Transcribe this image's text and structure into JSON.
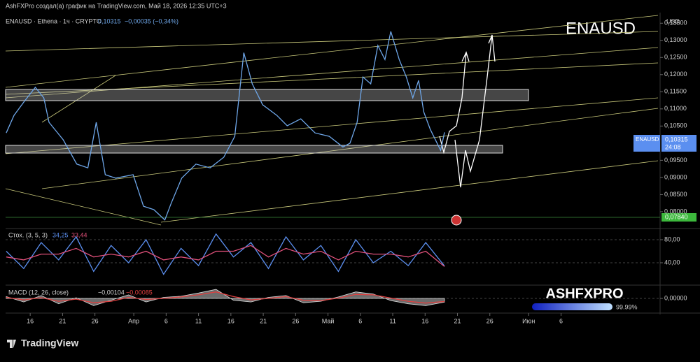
{
  "header": {
    "attribution": "AshFXPro создал(а) график на TradingView.com, Май 18, 2026 12:35 UTC+3",
    "symbol_line": "ENAUSD · Ethena · 1ч · CRYPTO",
    "price": "0,10315",
    "change": "−0,00035 (−0,34%)",
    "watermark": "ENAUSD",
    "currency": "USD",
    "brand": "ASHFXPRO",
    "brand_pct": "99.99%",
    "footer": "TradingView"
  },
  "chart_data": [
    {
      "type": "line",
      "xlim": [
        -3.8,
        97.3
      ],
      "ylim": [
        0.0755,
        0.1377
      ],
      "x": [
        -3.7,
        -2.5,
        -0.9,
        0.8,
        2.1,
        2.9,
        5.1,
        7.2,
        8.9,
        10.2,
        11.6,
        13.2,
        15.9,
        17.5,
        19.1,
        20.8,
        21.8,
        23.4,
        25.6,
        27.8,
        29.9,
        31.6,
        33.0,
        34.3,
        35.9,
        38.1,
        39.7,
        41.8,
        44.0,
        46.2,
        48.3,
        49.4,
        50.5,
        51.4,
        52.6,
        53.7,
        54.8,
        55.7,
        57.0,
        58.1,
        59.1,
        60.0,
        60.8,
        61.8,
        63.4,
        64.0
      ],
      "series": [
        {
          "color": "#6ea6e8",
          "values": [
            0.103,
            0.1081,
            0.1122,
            0.1163,
            0.1132,
            0.1061,
            0.101,
            0.0939,
            0.0928,
            0.1061,
            0.0908,
            0.0898,
            0.0908,
            0.0816,
            0.0806,
            0.0776,
            0.0826,
            0.0898,
            0.0939,
            0.0928,
            0.0959,
            0.102,
            0.1264,
            0.1173,
            0.1112,
            0.1081,
            0.1051,
            0.1071,
            0.103,
            0.102,
            0.0989,
            0.1,
            0.1061,
            0.1193,
            0.1173,
            0.1285,
            0.1244,
            0.1326,
            0.1244,
            0.1193,
            0.1132,
            0.1183,
            0.1091,
            0.104,
            0.0979,
            0.10315
          ]
        }
      ],
      "xticks": [
        {
          "value": 0,
          "label": "16"
        },
        {
          "value": 5,
          "label": "21"
        },
        {
          "value": 10,
          "label": "26"
        },
        {
          "value": 16,
          "label": "Апр"
        },
        {
          "value": 21,
          "label": "6"
        },
        {
          "value": 26,
          "label": "11"
        },
        {
          "value": 31,
          "label": "16"
        },
        {
          "value": 36,
          "label": "21"
        },
        {
          "value": 41,
          "label": "26"
        },
        {
          "value": 46,
          "label": "Май"
        },
        {
          "value": 51,
          "label": "6"
        },
        {
          "value": 56,
          "label": "11"
        },
        {
          "value": 61,
          "label": "16"
        },
        {
          "value": 66,
          "label": "21"
        },
        {
          "value": 71,
          "label": "26"
        },
        {
          "value": 77,
          "label": "Июн"
        },
        {
          "value": 82,
          "label": "6"
        }
      ],
      "yticks": [
        {
          "value": 0.135,
          "label": "0,13500"
        },
        {
          "value": 0.13,
          "label": "0,13000"
        },
        {
          "value": 0.125,
          "label": "0,12500"
        },
        {
          "value": 0.12,
          "label": "0,12000"
        },
        {
          "value": 0.115,
          "label": "0,11500"
        },
        {
          "value": 0.11,
          "label": "0,11000"
        },
        {
          "value": 0.105,
          "label": "0,10500"
        },
        {
          "value": 0.095,
          "label": "0,09500"
        },
        {
          "value": 0.09,
          "label": "0,09000"
        },
        {
          "value": 0.085,
          "label": "0,08500"
        },
        {
          "value": 0.08,
          "label": "0,08000"
        }
      ],
      "price_tag": {
        "label": "ENAUSD",
        "value": "0,10315",
        "timer": "24:08"
      },
      "level_tag": "0,07840"
    },
    {
      "type": "line",
      "title": "Стох. (3, 5, 3)",
      "xlim": [
        -3.8,
        97.3
      ],
      "ylim": [
        2.4,
        98.2
      ],
      "x": [
        -3.7,
        -1,
        1.7,
        4.4,
        7.1,
        9.8,
        12.5,
        15.2,
        17.9,
        20.6,
        23.3,
        26,
        28.7,
        31.4,
        34.1,
        36.8,
        39.5,
        42.2,
        44.9,
        47.6,
        50.3,
        53,
        55.7,
        58.4,
        61.1,
        64
      ],
      "series": [
        {
          "color": "#5b8ff0",
          "last_label": "34,25",
          "values": [
            60,
            30,
            75,
            45,
            85,
            25,
            70,
            40,
            80,
            20,
            65,
            35,
            90,
            50,
            75,
            30,
            85,
            45,
            70,
            25,
            80,
            40,
            60,
            35,
            75,
            34.25
          ]
        },
        {
          "color": "#e0507a",
          "last_label": "33,44",
          "values": [
            50,
            45,
            55,
            55,
            65,
            50,
            55,
            50,
            60,
            45,
            50,
            45,
            60,
            60,
            70,
            50,
            65,
            55,
            60,
            45,
            60,
            55,
            55,
            50,
            60,
            33.44
          ]
        }
      ],
      "yticks": [
        {
          "value": 80,
          "label": "80,00"
        },
        {
          "value": 40,
          "label": "40,00"
        }
      ]
    },
    {
      "type": "line",
      "title": "MACD (12, 26, close)",
      "xlim": [
        -3.8,
        97.3
      ],
      "ylim": [
        -0.0035,
        0.0035
      ],
      "x": [
        -3.7,
        -1,
        1.7,
        4.4,
        7.1,
        9.8,
        12.5,
        15.2,
        17.9,
        20.6,
        23.3,
        26,
        28.7,
        31.4,
        34.1,
        36.8,
        39.5,
        42.2,
        44.9,
        47.6,
        50.3,
        53,
        55.7,
        58.4,
        61.1,
        64
      ],
      "series": [
        {
          "color": "#9a9a9a",
          "style": "area",
          "last_label": "−0,00104",
          "values": [
            0.0005,
            -0.001,
            0.0008,
            -0.0015,
            0.0002,
            -0.002,
            -0.0005,
            0.001,
            -0.001,
            0.0003,
            0.0006,
            0.0015,
            0.0025,
            -0.0005,
            -0.001,
            0.0003,
            0.0008,
            -0.0012,
            -0.0008,
            0.0004,
            0.0018,
            0.0012,
            -0.0006,
            -0.0015,
            -0.002,
            -0.00104
          ]
        },
        {
          "color": "#e04040",
          "last_label": "−0,00085",
          "values": [
            0.0003,
            -0.0004,
            0.0002,
            -0.0008,
            -0.0002,
            -0.0012,
            -0.0008,
            0.0003,
            -0.0003,
            0,
            0.0004,
            0.001,
            0.0018,
            0.0005,
            -0.0004,
            0,
            0.0005,
            -0.0005,
            -0.0006,
            0.0001,
            0.0011,
            0.001,
            0.0001,
            -0.0008,
            -0.0013,
            -0.00085
          ]
        }
      ],
      "yticks": [
        {
          "value": 0,
          "label": "0,00000"
        }
      ]
    }
  ]
}
